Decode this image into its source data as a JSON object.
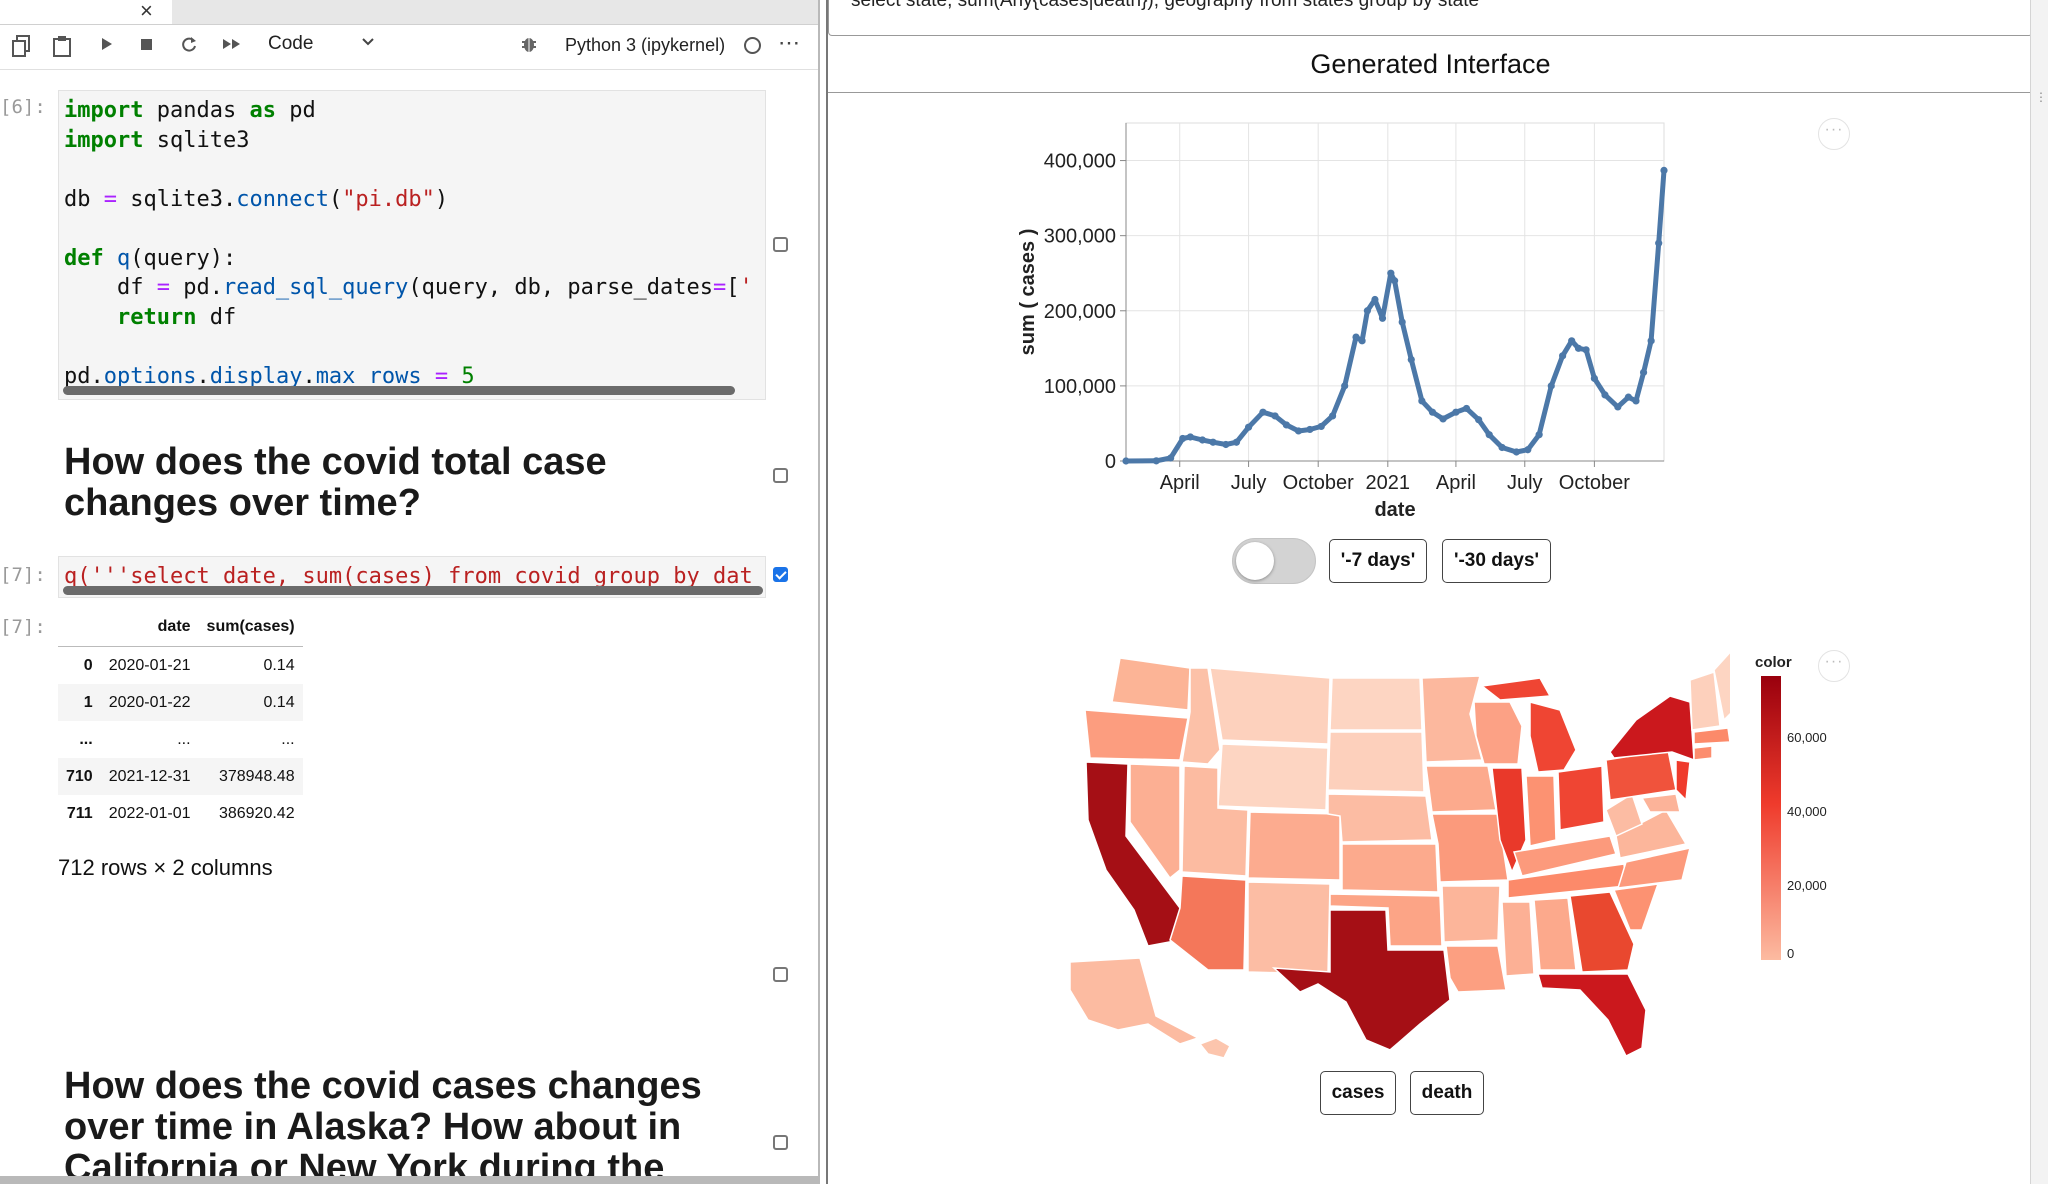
{
  "notebook": {
    "tab_close": "×",
    "toolbar": {
      "cell_type": "Code",
      "kernel": "Python 3 (ipykernel)",
      "icons": [
        "copy-icon",
        "paste-icon",
        "run-icon",
        "stop-icon",
        "restart-icon",
        "fast-forward-icon",
        "chevron-down-icon",
        "bug-icon",
        "kernel-status-icon",
        "more-icon"
      ]
    },
    "cells": {
      "c6_prompt": "[6]:",
      "c6_code": [
        "import pandas as pd",
        "import sqlite3",
        "",
        "db = sqlite3.connect(\"pi.db\")",
        "",
        "def q(query):",
        "    df = pd.read_sql_query(query, db, parse_dates=['",
        "    return df",
        "",
        "pd.options.display.max_rows = 5"
      ],
      "md1": "How does the covid total case changes over time?",
      "c7_prompt": "[7]:",
      "c7_code": "q('''select date, sum(cases) from covid group by dat",
      "out7_prompt": "[7]:",
      "df_columns": [
        "",
        "date",
        "sum(cases)"
      ],
      "df_rows": [
        [
          "0",
          "2020-01-21",
          "0.14"
        ],
        [
          "1",
          "2020-01-22",
          "0.14"
        ],
        [
          "...",
          "...",
          "..."
        ],
        [
          "710",
          "2021-12-31",
          "378948.48"
        ],
        [
          "711",
          "2022-01-01",
          "386920.42"
        ]
      ],
      "df_shape": "712 rows × 2 columns",
      "md2": "How does the covid cases changes over time in Alaska? How about in California or New York during the"
    }
  },
  "panel": {
    "sql_text": "select state, sum(Any{cases|death}), geography from states group by state",
    "title": "Generated Interface",
    "buttons": {
      "days7": "'-7 days'",
      "days30": "'-30 days'",
      "cases": "cases",
      "death": "death"
    },
    "toggle_on": false,
    "more": "···"
  },
  "chart_data": [
    {
      "type": "line",
      "xlabel": "date",
      "ylabel": "sum ( cases )",
      "x_ticks": [
        "April",
        "July",
        "October",
        "2021",
        "April",
        "July",
        "October"
      ],
      "y_ticks": [
        "0",
        "100,000",
        "200,000",
        "300,000",
        "400,000"
      ],
      "ylim": [
        0,
        450000
      ],
      "xlim": [
        "2020-01-21",
        "2022-01-01"
      ],
      "color": "#4c78a8",
      "points": [
        [
          "2020-01-21",
          0
        ],
        [
          "2020-03-01",
          200
        ],
        [
          "2020-03-20",
          4000
        ],
        [
          "2020-04-05",
          30000
        ],
        [
          "2020-04-15",
          32000
        ],
        [
          "2020-05-01",
          28000
        ],
        [
          "2020-05-15",
          25000
        ],
        [
          "2020-06-01",
          22000
        ],
        [
          "2020-06-15",
          25000
        ],
        [
          "2020-07-01",
          45000
        ],
        [
          "2020-07-20",
          65000
        ],
        [
          "2020-08-05",
          60000
        ],
        [
          "2020-08-20",
          48000
        ],
        [
          "2020-09-05",
          40000
        ],
        [
          "2020-09-20",
          42000
        ],
        [
          "2020-10-05",
          46000
        ],
        [
          "2020-10-20",
          60000
        ],
        [
          "2020-11-05",
          100000
        ],
        [
          "2020-11-20",
          165000
        ],
        [
          "2020-11-28",
          160000
        ],
        [
          "2020-12-05",
          200000
        ],
        [
          "2020-12-15",
          215000
        ],
        [
          "2020-12-25",
          190000
        ],
        [
          "2021-01-05",
          250000
        ],
        [
          "2021-01-10",
          240000
        ],
        [
          "2021-01-20",
          185000
        ],
        [
          "2021-02-01",
          135000
        ],
        [
          "2021-02-15",
          80000
        ],
        [
          "2021-03-01",
          65000
        ],
        [
          "2021-03-15",
          56000
        ],
        [
          "2021-04-01",
          65000
        ],
        [
          "2021-04-15",
          70000
        ],
        [
          "2021-05-01",
          55000
        ],
        [
          "2021-05-15",
          35000
        ],
        [
          "2021-06-01",
          18000
        ],
        [
          "2021-06-20",
          12000
        ],
        [
          "2021-07-05",
          15000
        ],
        [
          "2021-07-20",
          35000
        ],
        [
          "2021-08-05",
          100000
        ],
        [
          "2021-08-20",
          140000
        ],
        [
          "2021-09-01",
          160000
        ],
        [
          "2021-09-10",
          150000
        ],
        [
          "2021-09-20",
          148000
        ],
        [
          "2021-10-01",
          110000
        ],
        [
          "2021-10-15",
          88000
        ],
        [
          "2021-11-01",
          72000
        ],
        [
          "2021-11-15",
          85000
        ],
        [
          "2021-11-25",
          80000
        ],
        [
          "2021-12-05",
          118000
        ],
        [
          "2021-12-15",
          160000
        ],
        [
          "2021-12-25",
          290000
        ],
        [
          "2022-01-01",
          386920
        ]
      ]
    },
    {
      "type": "heatmap",
      "subtype": "choropleth",
      "legend_title": "color",
      "legend_ticks": [
        "60,000",
        "40,000",
        "20,000",
        "0"
      ],
      "color_range": [
        "#fcbba1",
        "#99000d"
      ],
      "highlighted_states": [
        "California",
        "Texas",
        "Florida",
        "New York",
        "Pennsylvania",
        "Illinois",
        "Ohio",
        "Georgia",
        "Arizona",
        "Michigan"
      ]
    }
  ]
}
